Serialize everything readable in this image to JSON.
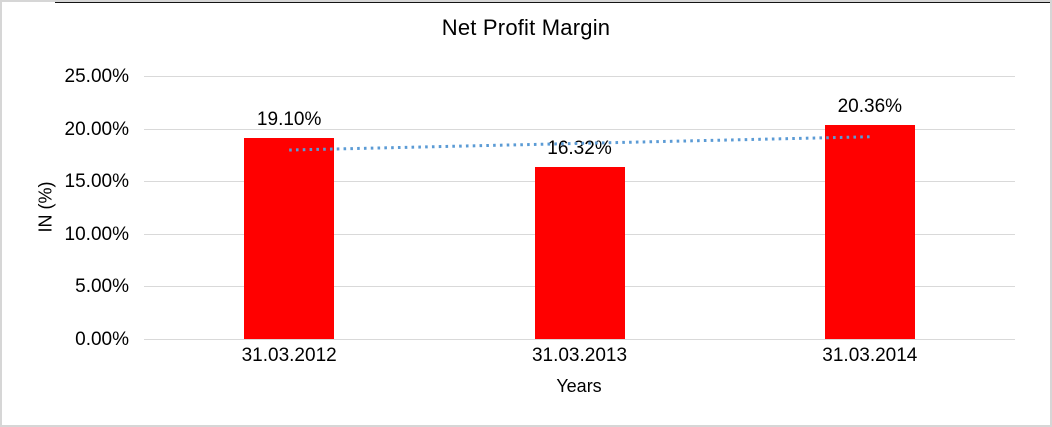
{
  "chart_data": {
    "type": "bar",
    "title": "Net Profit Margin",
    "categories": [
      "31.03.2012",
      "31.03.2013",
      "31.03.2014"
    ],
    "values": [
      19.1,
      16.32,
      20.36
    ],
    "data_labels": [
      "19.10%",
      "16.32%",
      "20.36%"
    ],
    "xlabel": "Years",
    "ylabel": "IN (%)",
    "ylim": [
      0,
      25
    ],
    "ytick_step": 5,
    "ytick_labels": [
      "0.00%",
      "5.00%",
      "10.00%",
      "15.00%",
      "20.00%",
      "25.00%"
    ],
    "grid": true,
    "legend": "none",
    "bar_color": "#FF0000",
    "gridline_color": "#D9D9D9",
    "text_color": "#000000",
    "trendline": {
      "type": "linear",
      "style": "dotted",
      "color": "#5B9BD5",
      "endpoints_percent": [
        17.96,
        19.22
      ]
    }
  }
}
